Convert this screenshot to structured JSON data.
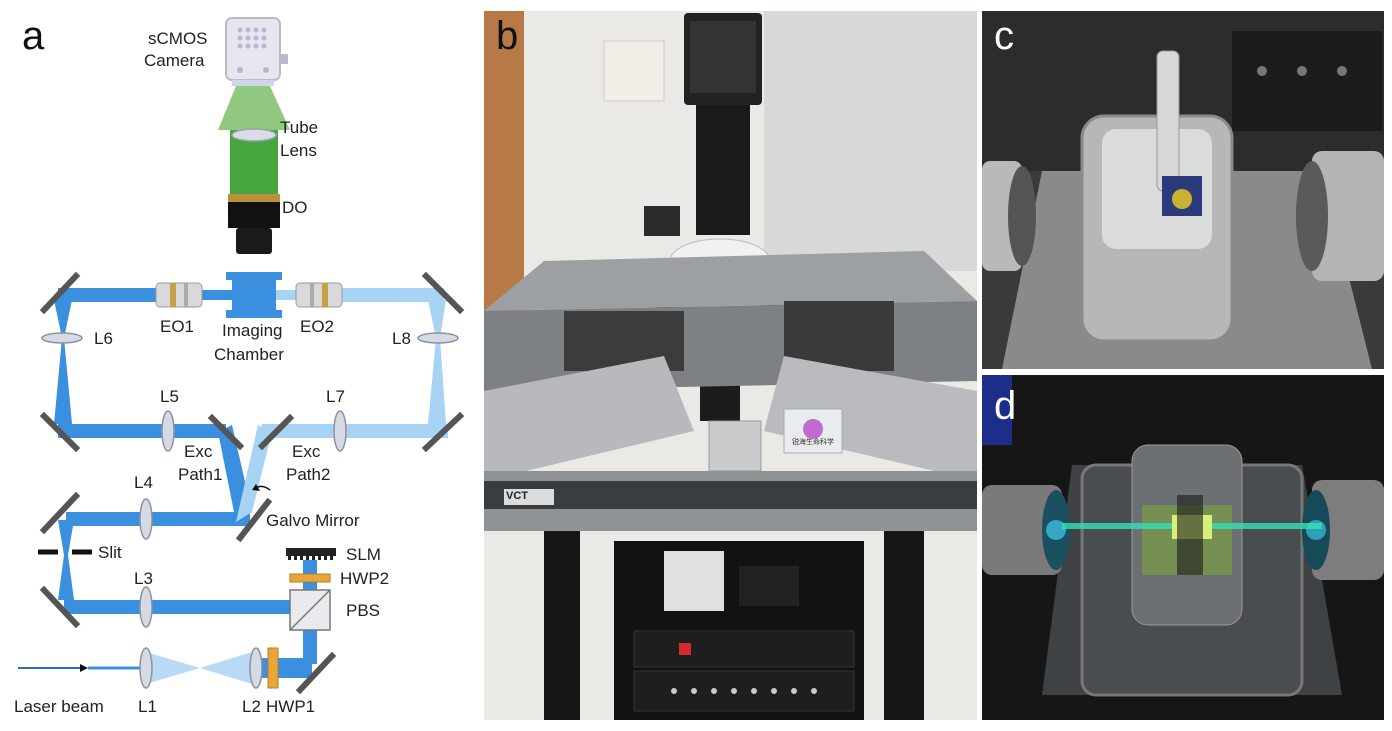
{
  "panels": {
    "a": "a",
    "b": "b",
    "c": "c",
    "d": "d"
  },
  "diagram": {
    "camera_line1": "sCMOS",
    "camera_line2": "Camera",
    "tube_line1": "Tube",
    "tube_line2": "Lens",
    "do": "DO",
    "eo1": "EO1",
    "eo2": "EO2",
    "chamber_line1": "Imaging",
    "chamber_line2": "Chamber",
    "l1": "L1",
    "l2": "L2",
    "l3": "L3",
    "l4": "L4",
    "l5": "L5",
    "l6": "L6",
    "l7": "L7",
    "l8": "L8",
    "exc1_line1": "Exc",
    "exc1_line2": "Path1",
    "exc2_line1": "Exc",
    "exc2_line2": "Path2",
    "galvo": "Galvo Mirror",
    "slit": "Slit",
    "slm": "SLM",
    "hwp2": "HWP2",
    "hwp1": "HWP1",
    "pbs": "PBS",
    "laser": "Laser beam"
  },
  "photo_b": {
    "brand_tag": "VCT",
    "logo_text": "锐海生命科学"
  }
}
